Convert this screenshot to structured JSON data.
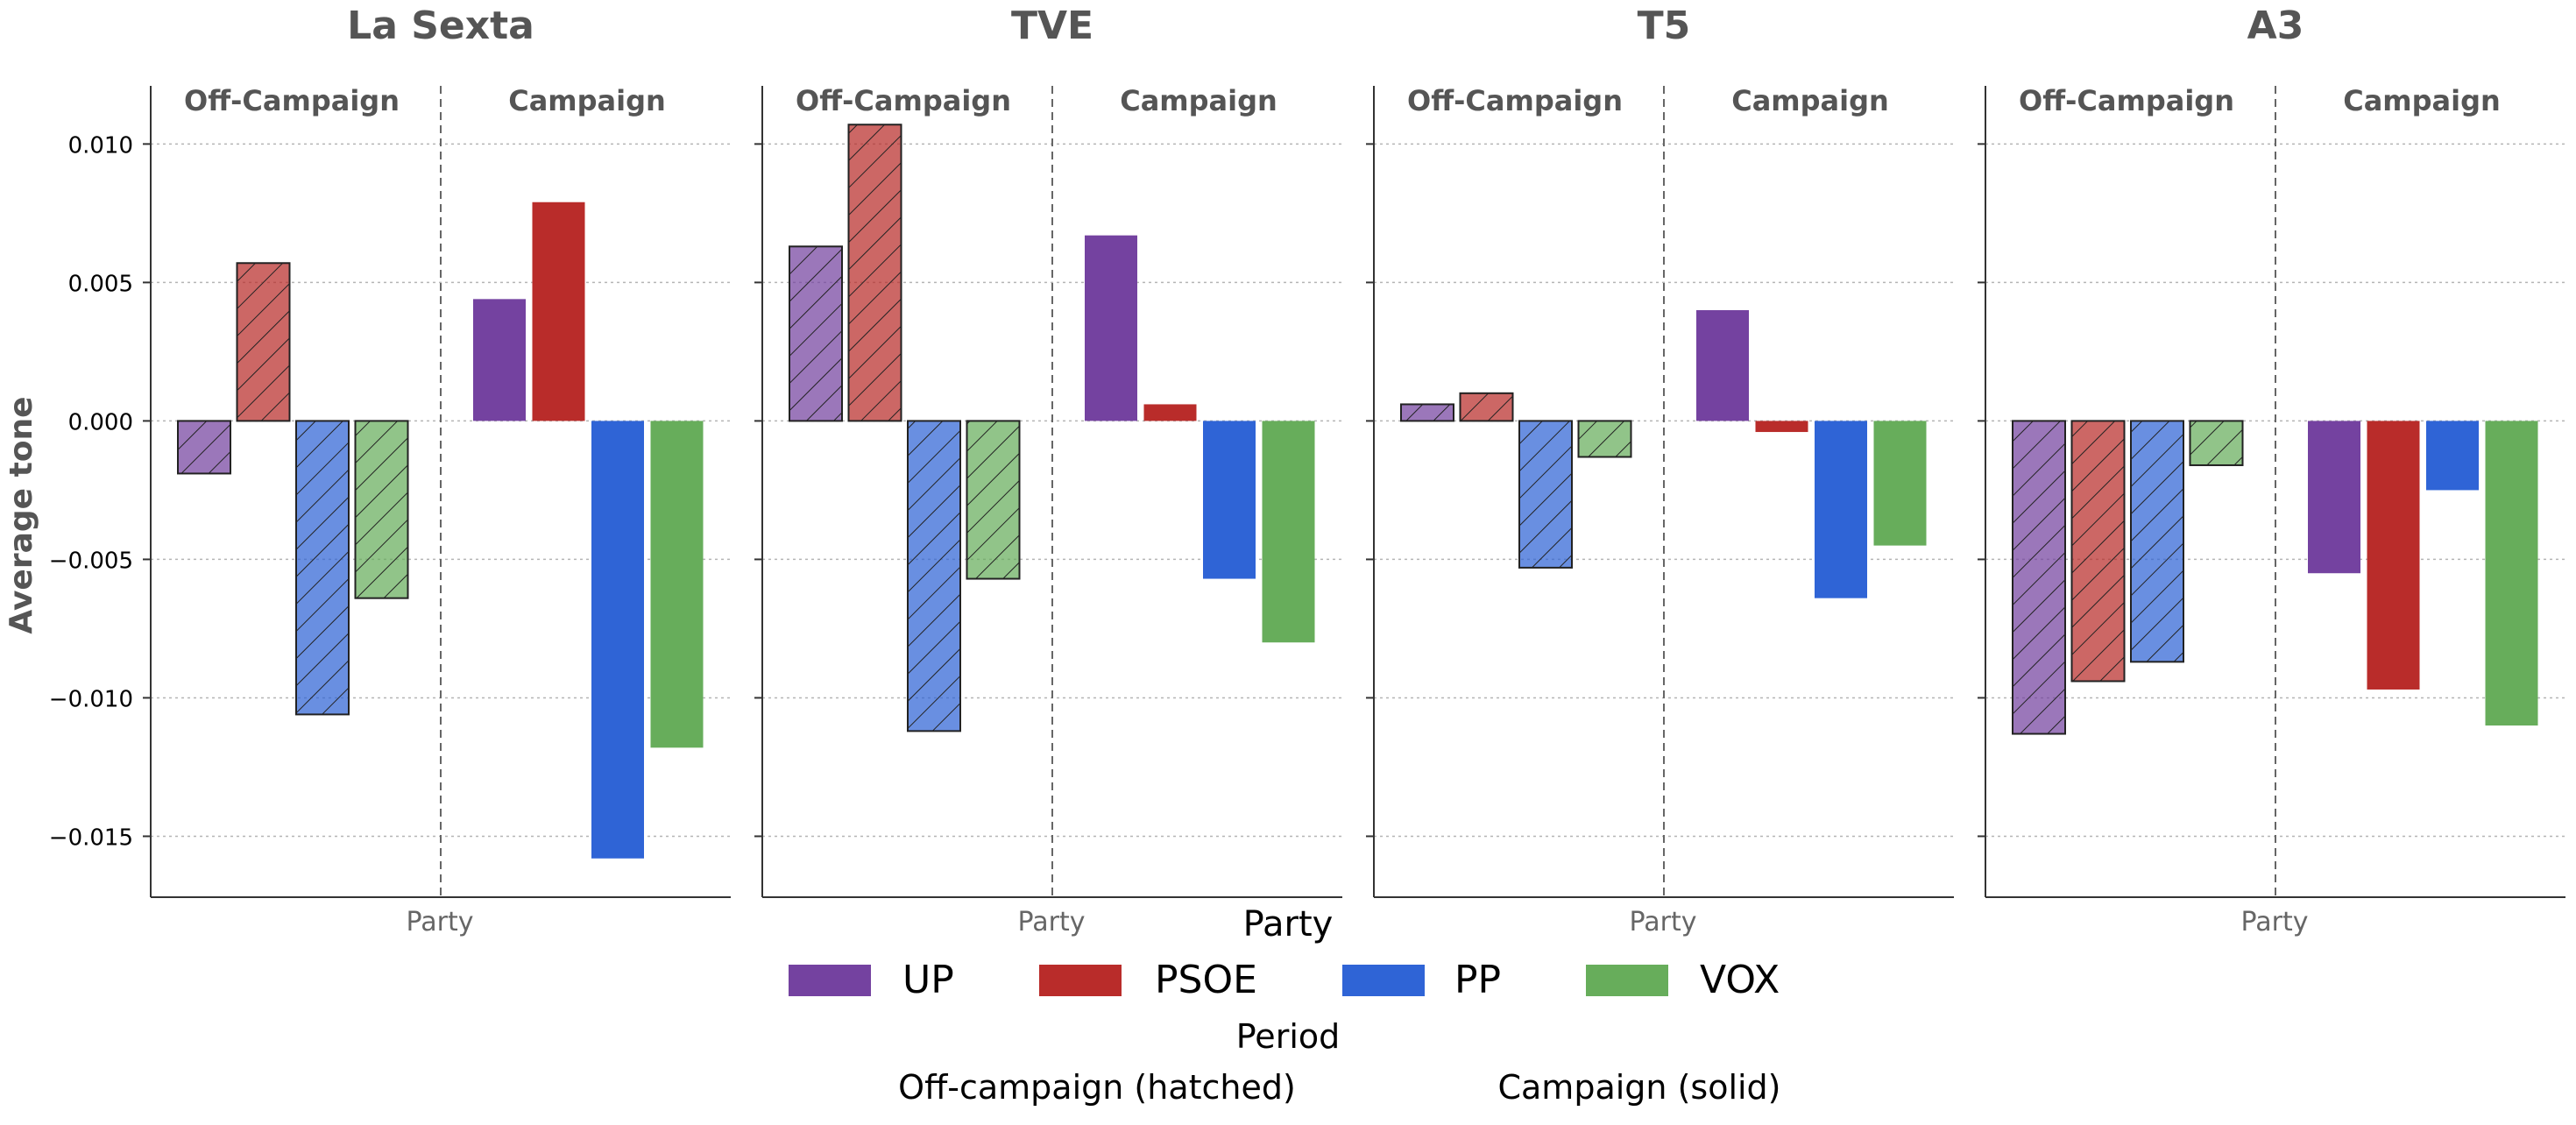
{
  "chart_data": {
    "type": "bar",
    "ylabel": "Average tone",
    "ylim": [
      -0.0172,
      0.0121
    ],
    "yticks": [
      0.01,
      0.005,
      0.0,
      -0.005,
      -0.01,
      -0.015
    ],
    "ytick_labels": [
      "0.010",
      "0.005",
      "0.000",
      "−0.005",
      "−0.010",
      "−0.015"
    ],
    "grid": true,
    "parties": [
      "UP",
      "PSOE",
      "PP",
      "VOX"
    ],
    "period_labels": [
      "Off-Campaign",
      "Campaign"
    ],
    "xlabel": "Party",
    "panels": [
      {
        "title": "La Sexta",
        "off_campaign": [
          -0.0019,
          0.0057,
          -0.0106,
          -0.0064
        ],
        "campaign": [
          0.0044,
          0.0079,
          -0.0158,
          -0.0118
        ]
      },
      {
        "title": "TVE",
        "off_campaign": [
          0.0063,
          0.0107,
          -0.0112,
          -0.0057
        ],
        "campaign": [
          0.0067,
          0.0006,
          -0.0057,
          -0.008
        ]
      },
      {
        "title": "T5",
        "off_campaign": [
          0.0006,
          0.001,
          -0.0053,
          -0.0013
        ],
        "campaign": [
          0.004,
          -0.0004,
          -0.0064,
          -0.0045
        ]
      },
      {
        "title": "A3",
        "off_campaign": [
          -0.0113,
          -0.0094,
          -0.0087,
          -0.0016
        ],
        "campaign": [
          -0.0055,
          -0.0097,
          -0.0025,
          -0.011
        ]
      }
    ],
    "legend": {
      "placement": "bottom-center",
      "party_title": "Party",
      "period_title": "Period",
      "period_entries": [
        "Off-campaign (hatched)",
        "Campaign (solid)"
      ]
    },
    "colors": {
      "UP": "#7442a0",
      "PSOE": "#b92c2a",
      "PP": "#2f64d6",
      "VOX": "#67ad5b"
    }
  }
}
